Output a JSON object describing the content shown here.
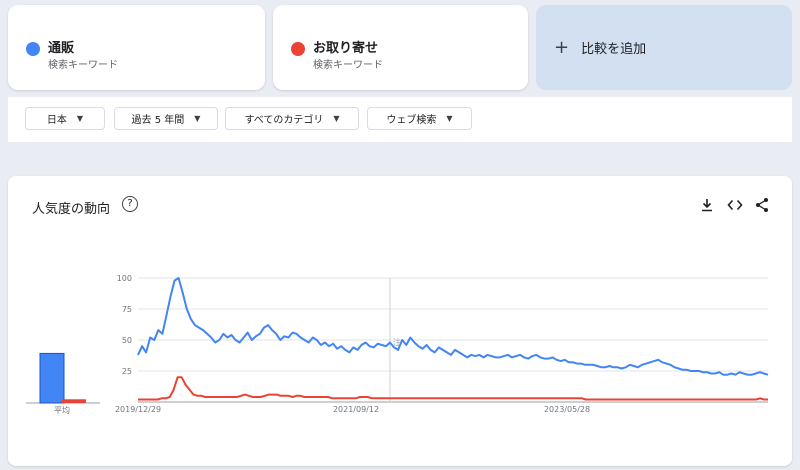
{
  "terms": [
    {
      "name": "通販",
      "type": "検索キーワード",
      "color": "#4285f4"
    },
    {
      "name": "お取り寄せ",
      "type": "検索キーワード",
      "color": "#ea4335"
    }
  ],
  "add_compare": {
    "plus": "+",
    "label": "比較を追加"
  },
  "filters": {
    "region": "日本",
    "period": "過去 5 年間",
    "category": "すべてのカテゴリ",
    "search_type": "ウェブ検索"
  },
  "panel": {
    "title": "人気度の動向",
    "help": "?",
    "download_icon": "download-icon",
    "embed_icon": "embed-code-icon",
    "share_icon": "share-icon"
  },
  "chart_data": {
    "type": "line",
    "average_label": "平均",
    "averages": [
      40,
      3
    ],
    "y_ticks": [
      25,
      50,
      75,
      100
    ],
    "ylim": [
      0,
      100
    ],
    "x_tick_labels": [
      "2019/12/29",
      "2021/09/12",
      "2023/05/28"
    ],
    "note_marker": "注",
    "grid": true,
    "series": [
      {
        "name": "通販",
        "color": "#4285f4",
        "values": [
          38,
          45,
          40,
          52,
          50,
          58,
          55,
          70,
          85,
          98,
          100,
          88,
          75,
          67,
          62,
          60,
          58,
          55,
          52,
          48,
          50,
          55,
          52,
          54,
          50,
          48,
          52,
          56,
          50,
          53,
          55,
          60,
          62,
          58,
          55,
          50,
          53,
          52,
          56,
          55,
          52,
          50,
          48,
          52,
          50,
          46,
          48,
          45,
          47,
          43,
          45,
          42,
          40,
          44,
          42,
          46,
          48,
          45,
          44,
          47,
          46,
          45,
          48,
          44,
          42,
          50,
          46,
          52,
          48,
          45,
          43,
          46,
          42,
          40,
          44,
          42,
          40,
          38,
          42,
          40,
          38,
          36,
          38,
          37,
          38,
          36,
          38,
          37,
          36,
          36,
          37,
          38,
          36,
          37,
          38,
          36,
          35,
          37,
          38,
          36,
          35,
          35,
          36,
          34,
          33,
          34,
          32,
          32,
          31,
          31,
          30,
          30,
          30,
          29,
          28,
          28,
          29,
          28,
          28,
          27,
          28,
          30,
          29,
          28,
          30,
          31,
          32,
          33,
          34,
          32,
          31,
          30,
          28,
          27,
          26,
          26,
          25,
          25,
          25,
          24,
          24,
          23,
          23,
          24,
          22,
          22,
          23,
          22,
          24,
          23,
          22,
          22,
          23,
          24,
          23,
          22
        ]
      },
      {
        "name": "お取り寄せ",
        "color": "#ea4335",
        "values": [
          2,
          2,
          2,
          2,
          2,
          2,
          3,
          3,
          4,
          10,
          20,
          20,
          14,
          10,
          6,
          5,
          5,
          4,
          4,
          4,
          4,
          4,
          4,
          4,
          4,
          4,
          5,
          6,
          5,
          4,
          4,
          4,
          5,
          6,
          6,
          6,
          5,
          5,
          5,
          4,
          5,
          5,
          4,
          4,
          4,
          4,
          4,
          4,
          4,
          3,
          3,
          3,
          3,
          3,
          3,
          3,
          4,
          4,
          4,
          3,
          3,
          3,
          3,
          3,
          3,
          3,
          3,
          3,
          3,
          3,
          3,
          3,
          3,
          3,
          3,
          3,
          3,
          3,
          3,
          3,
          3,
          3,
          3,
          3,
          3,
          3,
          3,
          3,
          3,
          3,
          3,
          3,
          3,
          3,
          3,
          3,
          3,
          3,
          3,
          3,
          3,
          3,
          3,
          3,
          3,
          3,
          3,
          3,
          3,
          3,
          3,
          3,
          3,
          2,
          2,
          2,
          2,
          2,
          2,
          2,
          2,
          2,
          2,
          2,
          2,
          2,
          2,
          2,
          2,
          2,
          2,
          2,
          2,
          2,
          2,
          2,
          2,
          2,
          2,
          2,
          2,
          2,
          2,
          2,
          2,
          2,
          2,
          2,
          2,
          2,
          2,
          2,
          2,
          2,
          2,
          2,
          2,
          3,
          2,
          2
        ]
      }
    ]
  }
}
